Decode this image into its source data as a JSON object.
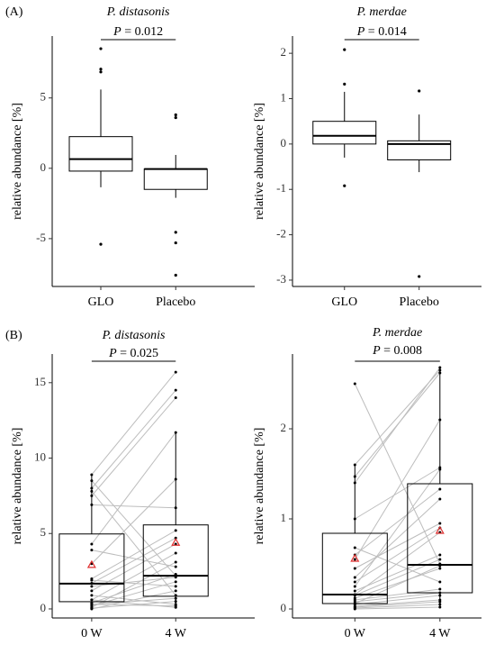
{
  "chart_data": [
    {
      "type": "box",
      "panel_label": "(A)",
      "title": "P. distasonis",
      "annotation": "P = 0.012",
      "ylabel": "relative abundance [%]",
      "categories": [
        "GLO",
        "Placebo"
      ],
      "boxes": [
        {
          "q1": -0.2,
          "median": 0.65,
          "q3": 2.25,
          "whisker_low": -1.35,
          "whisker_high": 5.6,
          "outliers": [
            8.5,
            7.05,
            6.85,
            -5.4
          ]
        },
        {
          "q1": -1.5,
          "median": -0.05,
          "q3": -0.05,
          "whisker_low": -2.1,
          "whisker_high": 0.95,
          "outliers": [
            3.8,
            3.6,
            -4.55,
            -5.3,
            -7.6
          ]
        }
      ],
      "ylim": [
        -8.4,
        9.4
      ],
      "yticks": [
        -5,
        0,
        5
      ]
    },
    {
      "type": "box",
      "title": "P. merdae",
      "annotation": "P = 0.014",
      "ylabel": "relative abundance [%]",
      "categories": [
        "GLO",
        "Placebo"
      ],
      "boxes": [
        {
          "q1": 0.0,
          "median": 0.18,
          "q3": 0.5,
          "whisker_low": -0.3,
          "whisker_high": 1.15,
          "outliers": [
            2.08,
            1.32,
            -0.92
          ]
        },
        {
          "q1": -0.35,
          "median": 0.0,
          "q3": 0.07,
          "whisker_low": -0.62,
          "whisker_high": 0.65,
          "outliers": [
            1.17,
            -2.92
          ]
        }
      ],
      "ylim": [
        -3.14,
        2.38
      ],
      "yticks": [
        -3,
        -2,
        -1,
        0,
        1,
        2
      ]
    },
    {
      "type": "box-paired",
      "panel_label": "(B)",
      "title": "P. distasonis",
      "annotation": "P = 0.025",
      "ylabel": "relative abundance [%]",
      "categories": [
        "0 W",
        "4 W"
      ],
      "boxes": [
        {
          "q1": 0.48,
          "median": 1.68,
          "q3": 4.97,
          "whisker_low": 0,
          "whisker_high": 8.9,
          "mean": 2.93
        },
        {
          "q1": 0.84,
          "median": 2.2,
          "q3": 5.57,
          "whisker_low": 0.1,
          "whisker_high": 11.7,
          "mean": 4.4
        }
      ],
      "paired": [
        [
          8.9,
          15.7
        ],
        [
          8.5,
          2.2
        ],
        [
          8.0,
          14.5
        ],
        [
          7.8,
          0.9
        ],
        [
          7.5,
          14.0
        ],
        [
          6.9,
          6.7
        ],
        [
          4.3,
          11.7
        ],
        [
          3.9,
          2.8
        ],
        [
          3.0,
          8.6
        ],
        [
          2.0,
          5.2
        ],
        [
          1.9,
          1.5
        ],
        [
          1.7,
          4.7
        ],
        [
          1.5,
          2.1
        ],
        [
          1.2,
          4.3
        ],
        [
          0.9,
          0.3
        ],
        [
          0.6,
          3.7
        ],
        [
          0.4,
          2.3
        ],
        [
          0.3,
          0.7
        ],
        [
          0.2,
          1.8
        ],
        [
          0.1,
          3.1
        ],
        [
          0.05,
          0.5
        ],
        [
          0,
          1.2
        ],
        [
          0.3,
          0.2
        ],
        [
          0.6,
          0.1
        ]
      ],
      "ylim": [
        -0.6,
        16.9
      ],
      "yticks": [
        0,
        5,
        10,
        15
      ]
    },
    {
      "type": "box-paired",
      "title": "P. merdae",
      "annotation": "P = 0.008",
      "ylabel": "relative abundance [%]",
      "categories": [
        "0 W",
        "4 W"
      ],
      "boxes": [
        {
          "q1": 0.06,
          "median": 0.16,
          "q3": 0.84,
          "whisker_low": 0,
          "whisker_high": 1.6,
          "mean": 0.56
        },
        {
          "q1": 0.18,
          "median": 0.49,
          "q3": 1.39,
          "whisker_low": 0.02,
          "whisker_high": 2.68,
          "mean": 0.87
        }
      ],
      "paired": [
        [
          2.5,
          0.5
        ],
        [
          1.6,
          2.65
        ],
        [
          1.47,
          2.62
        ],
        [
          1.4,
          2.68
        ],
        [
          1.0,
          1.57
        ],
        [
          0.68,
          0.3
        ],
        [
          0.6,
          1.33
        ],
        [
          0.55,
          2.1
        ],
        [
          0.45,
          0.95
        ],
        [
          0.35,
          1.22
        ],
        [
          0.3,
          0.9
        ],
        [
          0.25,
          1.55
        ],
        [
          0.2,
          0.6
        ],
        [
          0.16,
          0.85
        ],
        [
          0.15,
          0.55
        ],
        [
          0.12,
          0.45
        ],
        [
          0.1,
          0.22
        ],
        [
          0.08,
          0.18
        ],
        [
          0.06,
          0.48
        ],
        [
          0.05,
          0.15
        ],
        [
          0.03,
          0.1
        ],
        [
          0.02,
          0.08
        ],
        [
          0.01,
          0.05
        ],
        [
          0,
          0.02
        ]
      ],
      "ylim": [
        -0.1,
        2.83
      ],
      "yticks": [
        0,
        1,
        2
      ]
    }
  ]
}
